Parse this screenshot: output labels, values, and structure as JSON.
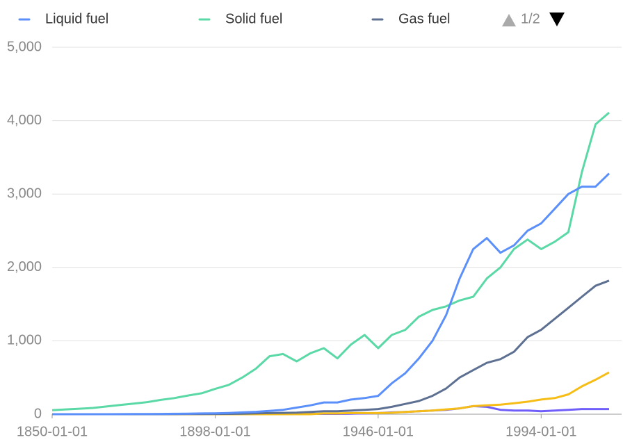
{
  "chart_data": {
    "type": "line",
    "legend_page": "1/2",
    "categories": [
      "1850-01-01",
      null,
      null,
      null,
      null,
      null,
      null,
      null,
      null,
      null,
      null,
      null,
      "1898-01-01",
      null,
      null,
      null,
      null,
      null,
      null,
      null,
      null,
      null,
      null,
      null,
      "1946-01-01",
      null,
      null,
      null,
      null,
      null,
      null,
      null,
      null,
      null,
      null,
      null,
      "1994-01-01",
      null,
      null,
      null,
      null,
      null
    ],
    "series": [
      {
        "name": "Liquid fuel",
        "color": "#5b8ff9",
        "values": [
          0,
          0,
          0,
          0,
          0,
          1,
          2,
          3,
          4,
          6,
          8,
          10,
          12,
          17,
          25,
          32,
          45,
          60,
          90,
          120,
          160,
          160,
          200,
          220,
          250,
          420,
          560,
          760,
          1000,
          1350,
          1850,
          2250,
          2400,
          2200,
          2300,
          2500,
          2600,
          2800,
          3000,
          3100,
          3100,
          3280
        ]
      },
      {
        "name": "Solid fuel",
        "color": "#5ad8a6",
        "values": [
          54,
          65,
          75,
          85,
          105,
          125,
          145,
          165,
          195,
          220,
          255,
          285,
          345,
          400,
          500,
          620,
          790,
          820,
          720,
          830,
          900,
          760,
          950,
          1080,
          900,
          1080,
          1150,
          1330,
          1420,
          1470,
          1550,
          1600,
          1850,
          2000,
          2250,
          2380,
          2250,
          2350,
          2480,
          3300,
          3950,
          4110
        ]
      },
      {
        "name": "Gas fuel",
        "color": "#5d7092",
        "values": [
          0,
          0,
          0,
          0,
          0,
          0,
          0,
          0,
          0,
          1,
          2,
          3,
          4,
          5,
          8,
          12,
          15,
          18,
          22,
          30,
          40,
          40,
          50,
          60,
          70,
          100,
          140,
          180,
          250,
          350,
          500,
          600,
          700,
          750,
          850,
          1050,
          1150,
          1300,
          1450,
          1600,
          1750,
          1820
        ]
      },
      {
        "color": "#f6bd16",
        "values": [
          0,
          0,
          0,
          0,
          0,
          0,
          0,
          0,
          0,
          0,
          0,
          0,
          0,
          0,
          0,
          0,
          0,
          0,
          0,
          0,
          10,
          10,
          15,
          15,
          15,
          20,
          30,
          40,
          50,
          65,
          80,
          110,
          120,
          130,
          150,
          170,
          200,
          220,
          270,
          380,
          470,
          570
        ]
      },
      {
        "color": "#6f5ef9",
        "values": [
          0,
          0,
          0,
          0,
          0,
          0,
          0,
          0,
          0,
          0,
          0,
          0,
          0,
          0,
          0,
          0,
          0,
          0,
          0,
          5,
          5,
          5,
          8,
          10,
          15,
          25,
          30,
          40,
          50,
          60,
          80,
          110,
          100,
          60,
          50,
          50,
          40,
          50,
          60,
          70,
          70,
          70
        ]
      }
    ],
    "legend_items": 3,
    "ylim": [
      0,
      5000
    ],
    "yticks": [
      0,
      {
        "value": 1000,
        "label": "1,000"
      },
      {
        "value": 2000,
        "label": "2,000"
      },
      {
        "value": 3000,
        "label": "3,000"
      },
      {
        "value": 4000,
        "label": "4,000"
      },
      {
        "value": 5000,
        "label": "5,000"
      }
    ],
    "grid": true
  }
}
